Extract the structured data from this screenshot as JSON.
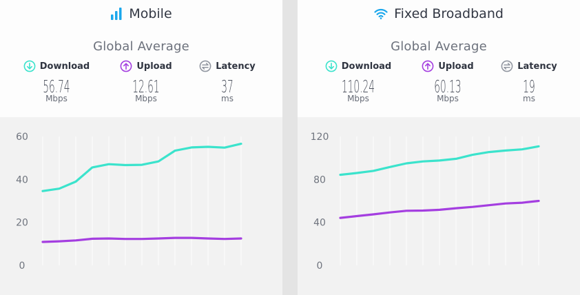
{
  "colors": {
    "download": "#3be3cc",
    "upload": "#a43ee0",
    "latency": "#9297a1",
    "title_icon": "#1aa7ec",
    "grid": "#ffffff",
    "axis_text": "#6f747e"
  },
  "mobile": {
    "title": "Mobile",
    "subtitle": "Global Average",
    "metrics": [
      {
        "label": "Download",
        "value": "56.74",
        "unit": "Mbps",
        "icon": "download-arrow-icon"
      },
      {
        "label": "Upload",
        "value": "12.61",
        "unit": "Mbps",
        "icon": "upload-arrow-icon"
      },
      {
        "label": "Latency",
        "value": "37",
        "unit": "ms",
        "icon": "latency-arrows-icon"
      }
    ]
  },
  "fixed": {
    "title": "Fixed Broadband",
    "subtitle": "Global Average",
    "metrics": [
      {
        "label": "Download",
        "value": "110.24",
        "unit": "Mbps",
        "icon": "download-arrow-icon"
      },
      {
        "label": "Upload",
        "value": "60.13",
        "unit": "Mbps",
        "icon": "upload-arrow-icon"
      },
      {
        "label": "Latency",
        "value": "19",
        "unit": "ms",
        "icon": "latency-arrows-icon"
      }
    ]
  },
  "chart_data": [
    {
      "type": "line",
      "title": "Mobile",
      "x": [
        1,
        2,
        3,
        4,
        5,
        6,
        7,
        8,
        9,
        10,
        11,
        12,
        13
      ],
      "ylim": [
        0,
        60
      ],
      "yticks": [
        "0",
        "20",
        "40",
        "60"
      ],
      "grid": true,
      "series": [
        {
          "name": "Download",
          "values": [
            34.6,
            35.7,
            39.0,
            45.6,
            47.1,
            46.7,
            46.8,
            48.4,
            53.4,
            54.9,
            55.2,
            54.8,
            56.6
          ]
        },
        {
          "name": "Upload",
          "values": [
            10.9,
            11.2,
            11.6,
            12.4,
            12.5,
            12.3,
            12.3,
            12.5,
            12.8,
            12.8,
            12.5,
            12.3,
            12.5
          ]
        }
      ]
    },
    {
      "type": "line",
      "title": "Fixed Broadband",
      "x": [
        1,
        2,
        3,
        4,
        5,
        6,
        7,
        8,
        9,
        10,
        11,
        12,
        13
      ],
      "ylim": [
        0,
        120
      ],
      "yticks": [
        "0",
        "40",
        "80",
        "120"
      ],
      "grid": true,
      "series": [
        {
          "name": "Download",
          "values": [
            84.3,
            86.0,
            88.0,
            91.6,
            95.0,
            96.8,
            97.6,
            99.2,
            102.9,
            105.5,
            106.9,
            108.0,
            110.8
          ]
        },
        {
          "name": "Upload",
          "values": [
            44.2,
            45.9,
            47.5,
            49.3,
            50.8,
            51.0,
            51.7,
            53.2,
            54.4,
            56.0,
            57.6,
            58.3,
            60.0
          ]
        }
      ]
    }
  ]
}
